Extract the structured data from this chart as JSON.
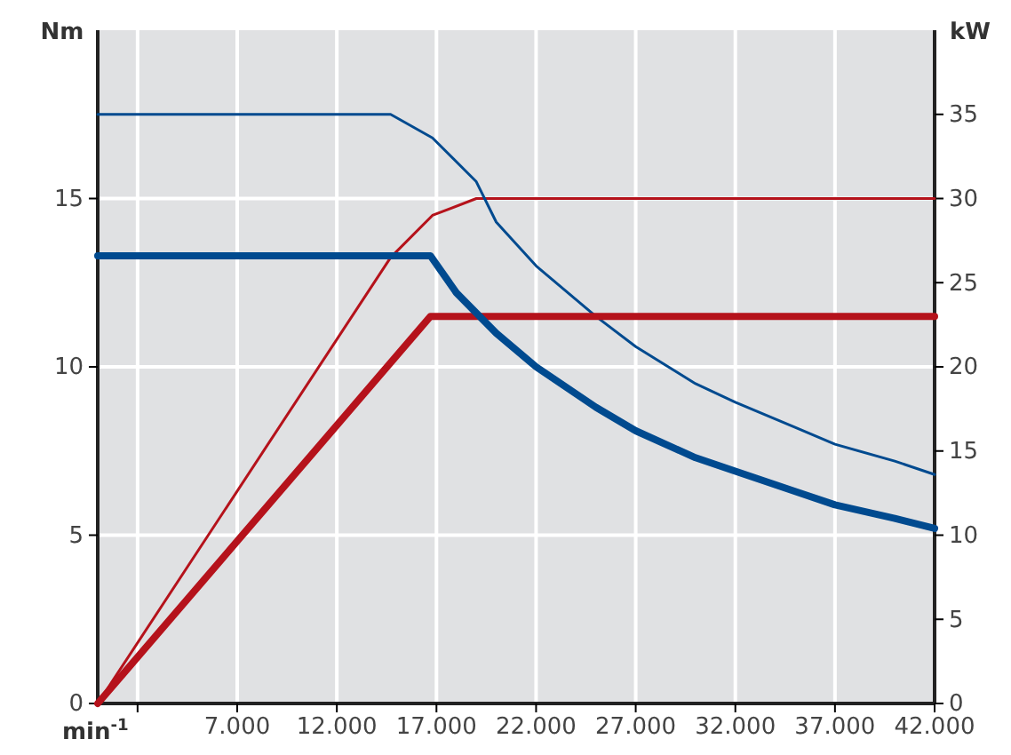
{
  "chart_data": {
    "type": "line",
    "xlabel": "min$^{-1}$",
    "ylabel": "Nm",
    "y2label": "kW",
    "xlim": [
      0,
      42000
    ],
    "xticks": [
      {
        "value": 2000,
        "label": null
      },
      {
        "value": 7000,
        "label": "7.000"
      },
      {
        "value": 12000,
        "label": "12.000"
      },
      {
        "value": 17000,
        "label": "17.000"
      },
      {
        "value": 22000,
        "label": "22.000"
      },
      {
        "value": 27000,
        "label": "27.000"
      },
      {
        "value": 32000,
        "label": "32.000"
      },
      {
        "value": 37000,
        "label": "37.000"
      },
      {
        "value": 42000,
        "label": "42.000"
      }
    ],
    "ylim": [
      0,
      20
    ],
    "yticks": [
      0,
      5,
      10,
      15
    ],
    "y2lim": [
      0,
      40
    ],
    "y2ticks": [
      0,
      5,
      10,
      15,
      20,
      25,
      30,
      35
    ],
    "grid": true,
    "series": [
      {
        "color": "#004a8f",
        "x": [
          0,
          16700,
          18000,
          20000,
          22000,
          25000,
          27000,
          30000,
          32000,
          35000,
          37000,
          40000,
          42000
        ],
        "values": [
          13.3,
          13.3,
          12.2,
          11.0,
          10.0,
          8.8,
          8.1,
          7.3,
          6.9,
          6.3,
          5.9,
          5.5,
          5.2
        ]
      },
      {
        "color": "#b5121b",
        "axis": "y2",
        "x": [
          0,
          16700,
          42000
        ],
        "values": [
          0,
          23,
          23
        ]
      },
      {
        "color": "#004a8f",
        "x": [
          0,
          14700,
          16800,
          19000,
          20000,
          22000,
          25000,
          27000,
          30000,
          32000,
          35000,
          37000,
          40000,
          42000
        ],
        "values": [
          17.5,
          17.5,
          16.8,
          15.5,
          14.3,
          13.0,
          11.5,
          10.6,
          9.5,
          8.95,
          8.2,
          7.7,
          7.2,
          6.8
        ]
      },
      {
        "color": "#b5121b",
        "axis": "y2",
        "x": [
          0,
          14700,
          16800,
          19000,
          42000
        ],
        "values": [
          0,
          26.5,
          29,
          30,
          30
        ]
      }
    ]
  }
}
